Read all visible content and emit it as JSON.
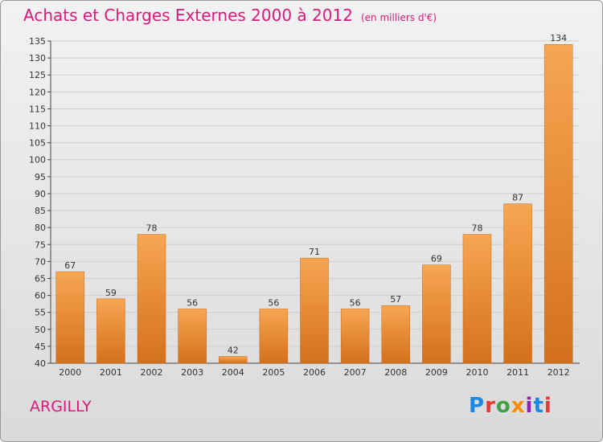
{
  "header": {
    "title": "Achats et Charges Externes 2000 à 2012",
    "unit": "(en milliers d'€)"
  },
  "footer": {
    "commune": "ARGILLY",
    "logo_text": "Proxiti",
    "logo_colors": [
      "#1e88e5",
      "#e53935",
      "#43a047",
      "#fb8c00",
      "#8e24aa",
      "#1e88e5",
      "#e53935"
    ]
  },
  "colors": {
    "bar_light": "#f7a652",
    "bar_dark": "#d4701c",
    "title": "#d81b7a",
    "grid": "#cfcfcf"
  },
  "chart_data": {
    "type": "bar",
    "title": "Achats et Charges Externes 2000 à 2012",
    "subtitle": "(en milliers d'€)",
    "categories": [
      "2000",
      "2001",
      "2002",
      "2003",
      "2004",
      "2005",
      "2006",
      "2007",
      "2008",
      "2009",
      "2010",
      "2011",
      "2012"
    ],
    "values": [
      67,
      59,
      78,
      56,
      42,
      56,
      71,
      56,
      57,
      69,
      78,
      87,
      134
    ],
    "ylim": [
      40,
      135
    ],
    "yticks": [
      40,
      45,
      50,
      55,
      60,
      65,
      70,
      75,
      80,
      85,
      90,
      95,
      100,
      105,
      110,
      115,
      120,
      125,
      130,
      135
    ],
    "grid": true
  }
}
